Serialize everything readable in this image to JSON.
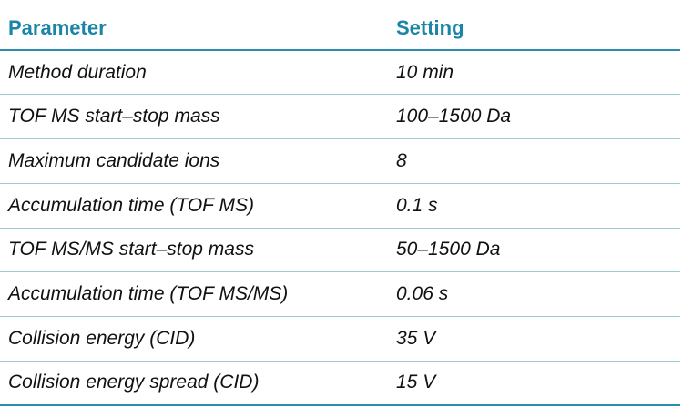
{
  "table": {
    "headers": [
      "Parameter",
      "Setting"
    ],
    "rows": [
      [
        "Method duration",
        "10 min"
      ],
      [
        "TOF MS start–stop mass",
        "100–1500 Da"
      ],
      [
        "Maximum candidate ions",
        "8"
      ],
      [
        "Accumulation time (TOF MS)",
        "0.1 s"
      ],
      [
        "TOF MS/MS start–stop mass",
        "50–1500 Da"
      ],
      [
        "Accumulation time (TOF MS/MS)",
        "0.06 s"
      ],
      [
        "Collision energy (CID)",
        "35 V"
      ],
      [
        "Collision energy spread (CID)",
        "15 V"
      ]
    ]
  },
  "colors": {
    "header_text": "#1a85a6",
    "rule_heavy": "#2a8fae",
    "rule_light": "#9fcad8",
    "body_text": "#111111"
  }
}
